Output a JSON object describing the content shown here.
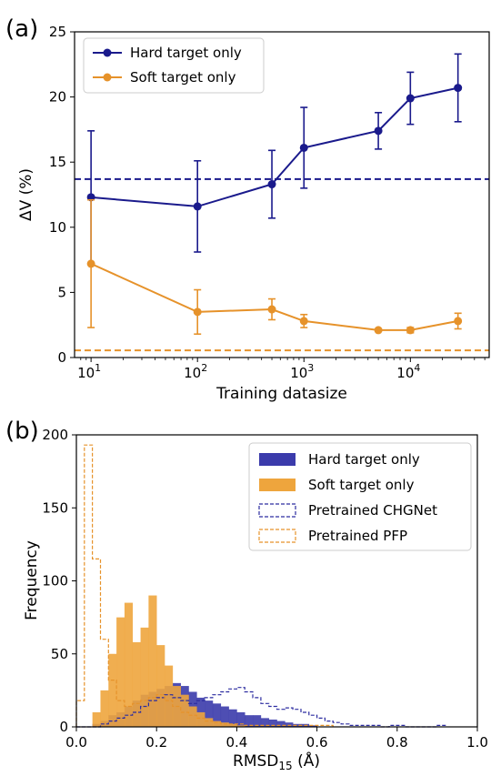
{
  "panel_a": {
    "label": "(a)",
    "xlabel": "Training datasize",
    "ylabel": "ΔV (%)"
  },
  "panel_b": {
    "label": "(b)",
    "xlabel": "RMSD",
    "xlabel_sub": "15",
    "xlabel_unit": " (Å)",
    "ylabel": "Frequency"
  },
  "chart_data": [
    {
      "type": "line",
      "panel": "(a)",
      "xlabel": "Training datasize",
      "ylabel": "ΔV (%)",
      "xscale": "log",
      "xlim": [
        7,
        55000
      ],
      "ylim": [
        0,
        25
      ],
      "xticks": [
        {
          "value": 10,
          "base": "10",
          "exp": "1"
        },
        {
          "value": 100,
          "base": "10",
          "exp": "2"
        },
        {
          "value": 1000,
          "base": "10",
          "exp": "3"
        },
        {
          "value": 10000,
          "base": "10",
          "exp": "4"
        }
      ],
      "yticks": [
        0,
        5,
        10,
        15,
        20,
        25
      ],
      "legend_position": "upper-left",
      "series": [
        {
          "name": "Hard target only",
          "color": "#1a1a8c",
          "x": [
            10,
            100,
            500,
            1000,
            5000,
            10000,
            28000
          ],
          "y": [
            12.3,
            11.6,
            13.3,
            16.1,
            17.4,
            19.9,
            20.7
          ],
          "err": [
            5.1,
            3.5,
            2.6,
            3.1,
            1.4,
            2.0,
            2.6
          ]
        },
        {
          "name": "Soft target only",
          "color": "#e6922a",
          "x": [
            10,
            100,
            500,
            1000,
            5000,
            10000,
            28000
          ],
          "y": [
            7.2,
            3.5,
            3.7,
            2.8,
            2.1,
            2.1,
            2.8
          ],
          "err": [
            4.9,
            1.7,
            0.8,
            0.5,
            0.1,
            0.2,
            0.6
          ]
        }
      ],
      "reference_lines": [
        {
          "y": 13.7,
          "color": "#1a1a8c",
          "style": "dashed"
        },
        {
          "y": 0.55,
          "color": "#e6922a",
          "style": "dashed"
        }
      ]
    },
    {
      "type": "histogram",
      "panel": "(b)",
      "xlabel": "RMSD15 (Å)",
      "ylabel": "Frequency",
      "xlim": [
        0,
        1.0
      ],
      "ylim": [
        0,
        200
      ],
      "xticks": [
        "0.0",
        "0.2",
        "0.4",
        "0.6",
        "0.8",
        "1.0"
      ],
      "yticks": [
        0,
        50,
        100,
        150,
        200
      ],
      "legend_position": "upper-right",
      "bin_start": 0.0,
      "bin_width": 0.02,
      "series": [
        {
          "name": "Hard target only",
          "style": "filled",
          "color": "#3b3bab",
          "counts": [
            0,
            0,
            2,
            4,
            8,
            10,
            14,
            18,
            22,
            24,
            26,
            28,
            30,
            28,
            24,
            20,
            18,
            16,
            14,
            12,
            10,
            8,
            8,
            6,
            5,
            4,
            3,
            2,
            2,
            1
          ]
        },
        {
          "name": "Soft target only",
          "style": "filled",
          "color": "#eea53d",
          "counts": [
            0,
            0,
            10,
            25,
            50,
            75,
            85,
            58,
            68,
            90,
            56,
            42,
            28,
            22,
            14,
            10,
            6,
            4,
            3,
            2,
            1
          ]
        },
        {
          "name": "Pretrained CHGNet",
          "style": "dashed-step",
          "color": "#2c2ca0",
          "counts": [
            0,
            0,
            0,
            2,
            4,
            6,
            8,
            10,
            14,
            18,
            20,
            22,
            20,
            18,
            16,
            18,
            20,
            22,
            24,
            26,
            27,
            24,
            20,
            16,
            14,
            12,
            13,
            12,
            10,
            8,
            6,
            4,
            3,
            2,
            1,
            1,
            1,
            1,
            0,
            1,
            1,
            0,
            0,
            0,
            0,
            1
          ]
        },
        {
          "name": "Pretrained PFP",
          "style": "dashed-step",
          "color": "#e6922a",
          "counts": [
            18,
            193,
            115,
            60,
            32,
            18,
            14,
            16,
            18,
            20,
            22,
            18,
            14,
            10,
            8,
            6,
            4,
            3,
            2,
            2,
            2,
            1,
            1,
            1,
            1,
            1,
            1,
            1,
            1,
            1,
            1,
            1
          ]
        }
      ]
    }
  ]
}
